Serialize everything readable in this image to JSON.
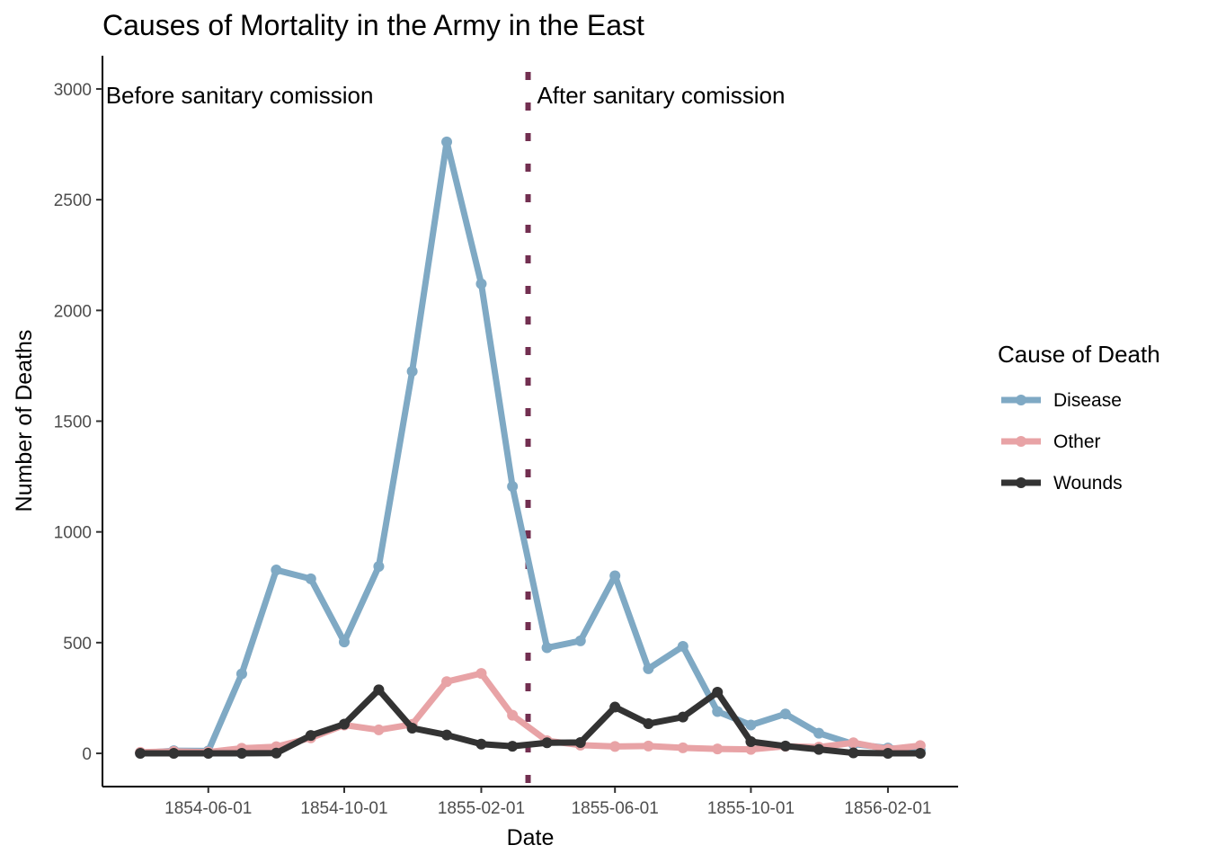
{
  "chart_data": {
    "type": "line",
    "title": "Causes of Mortality in the Army in the East",
    "xlabel": "Date",
    "ylabel": "Number of Deaths",
    "x": [
      "1854-04-01",
      "1854-05-01",
      "1854-06-01",
      "1854-07-01",
      "1854-08-01",
      "1854-09-01",
      "1854-10-01",
      "1854-11-01",
      "1854-12-01",
      "1855-01-01",
      "1855-02-01",
      "1855-03-01",
      "1855-04-01",
      "1855-05-01",
      "1855-06-01",
      "1855-07-01",
      "1855-08-01",
      "1855-09-01",
      "1855-10-01",
      "1855-11-01",
      "1855-12-01",
      "1856-01-01",
      "1856-02-01",
      "1856-03-01"
    ],
    "xticks": [
      "1854-06-01",
      "1854-10-01",
      "1855-02-01",
      "1855-06-01",
      "1855-10-01",
      "1856-02-01"
    ],
    "xlim": [
      "1854-02-26",
      "1856-04-04"
    ],
    "ylim": [
      -150,
      3150
    ],
    "yticks": [
      0,
      500,
      1000,
      1500,
      2000,
      2500,
      3000
    ],
    "series": [
      {
        "name": "Disease",
        "color": "#7fa9c4",
        "values": [
          1,
          12,
          11,
          359,
          828,
          788,
          503,
          844,
          1725,
          2761,
          2120,
          1205,
          477,
          508,
          802,
          382,
          483,
          189,
          128,
          178,
          91,
          42,
          24,
          15
        ]
      },
      {
        "name": "Other",
        "color": "#e8a3a6",
        "values": [
          5,
          9,
          6,
          23,
          30,
          70,
          128,
          106,
          131,
          324,
          361,
          172,
          57,
          37,
          31,
          33,
          25,
          20,
          18,
          32,
          28,
          48,
          19,
          35
        ]
      },
      {
        "name": "Wounds",
        "color": "#333333",
        "values": [
          0,
          0,
          0,
          0,
          1,
          81,
          132,
          287,
          114,
          83,
          42,
          32,
          48,
          49,
          209,
          134,
          164,
          276,
          53,
          33,
          18,
          2,
          0,
          0
        ]
      }
    ],
    "vline": {
      "x": "1855-03-15",
      "color": "#722f50"
    },
    "annotations": [
      {
        "text": "Before sanitary comission",
        "x": "1854-03-01",
        "y": 2980,
        "anchor": "start"
      },
      {
        "text": "After sanitary comission",
        "x": "1855-03-23",
        "y": 2980,
        "anchor": "start"
      }
    ],
    "legend": {
      "title": "Cause of Death",
      "position": "right"
    }
  }
}
